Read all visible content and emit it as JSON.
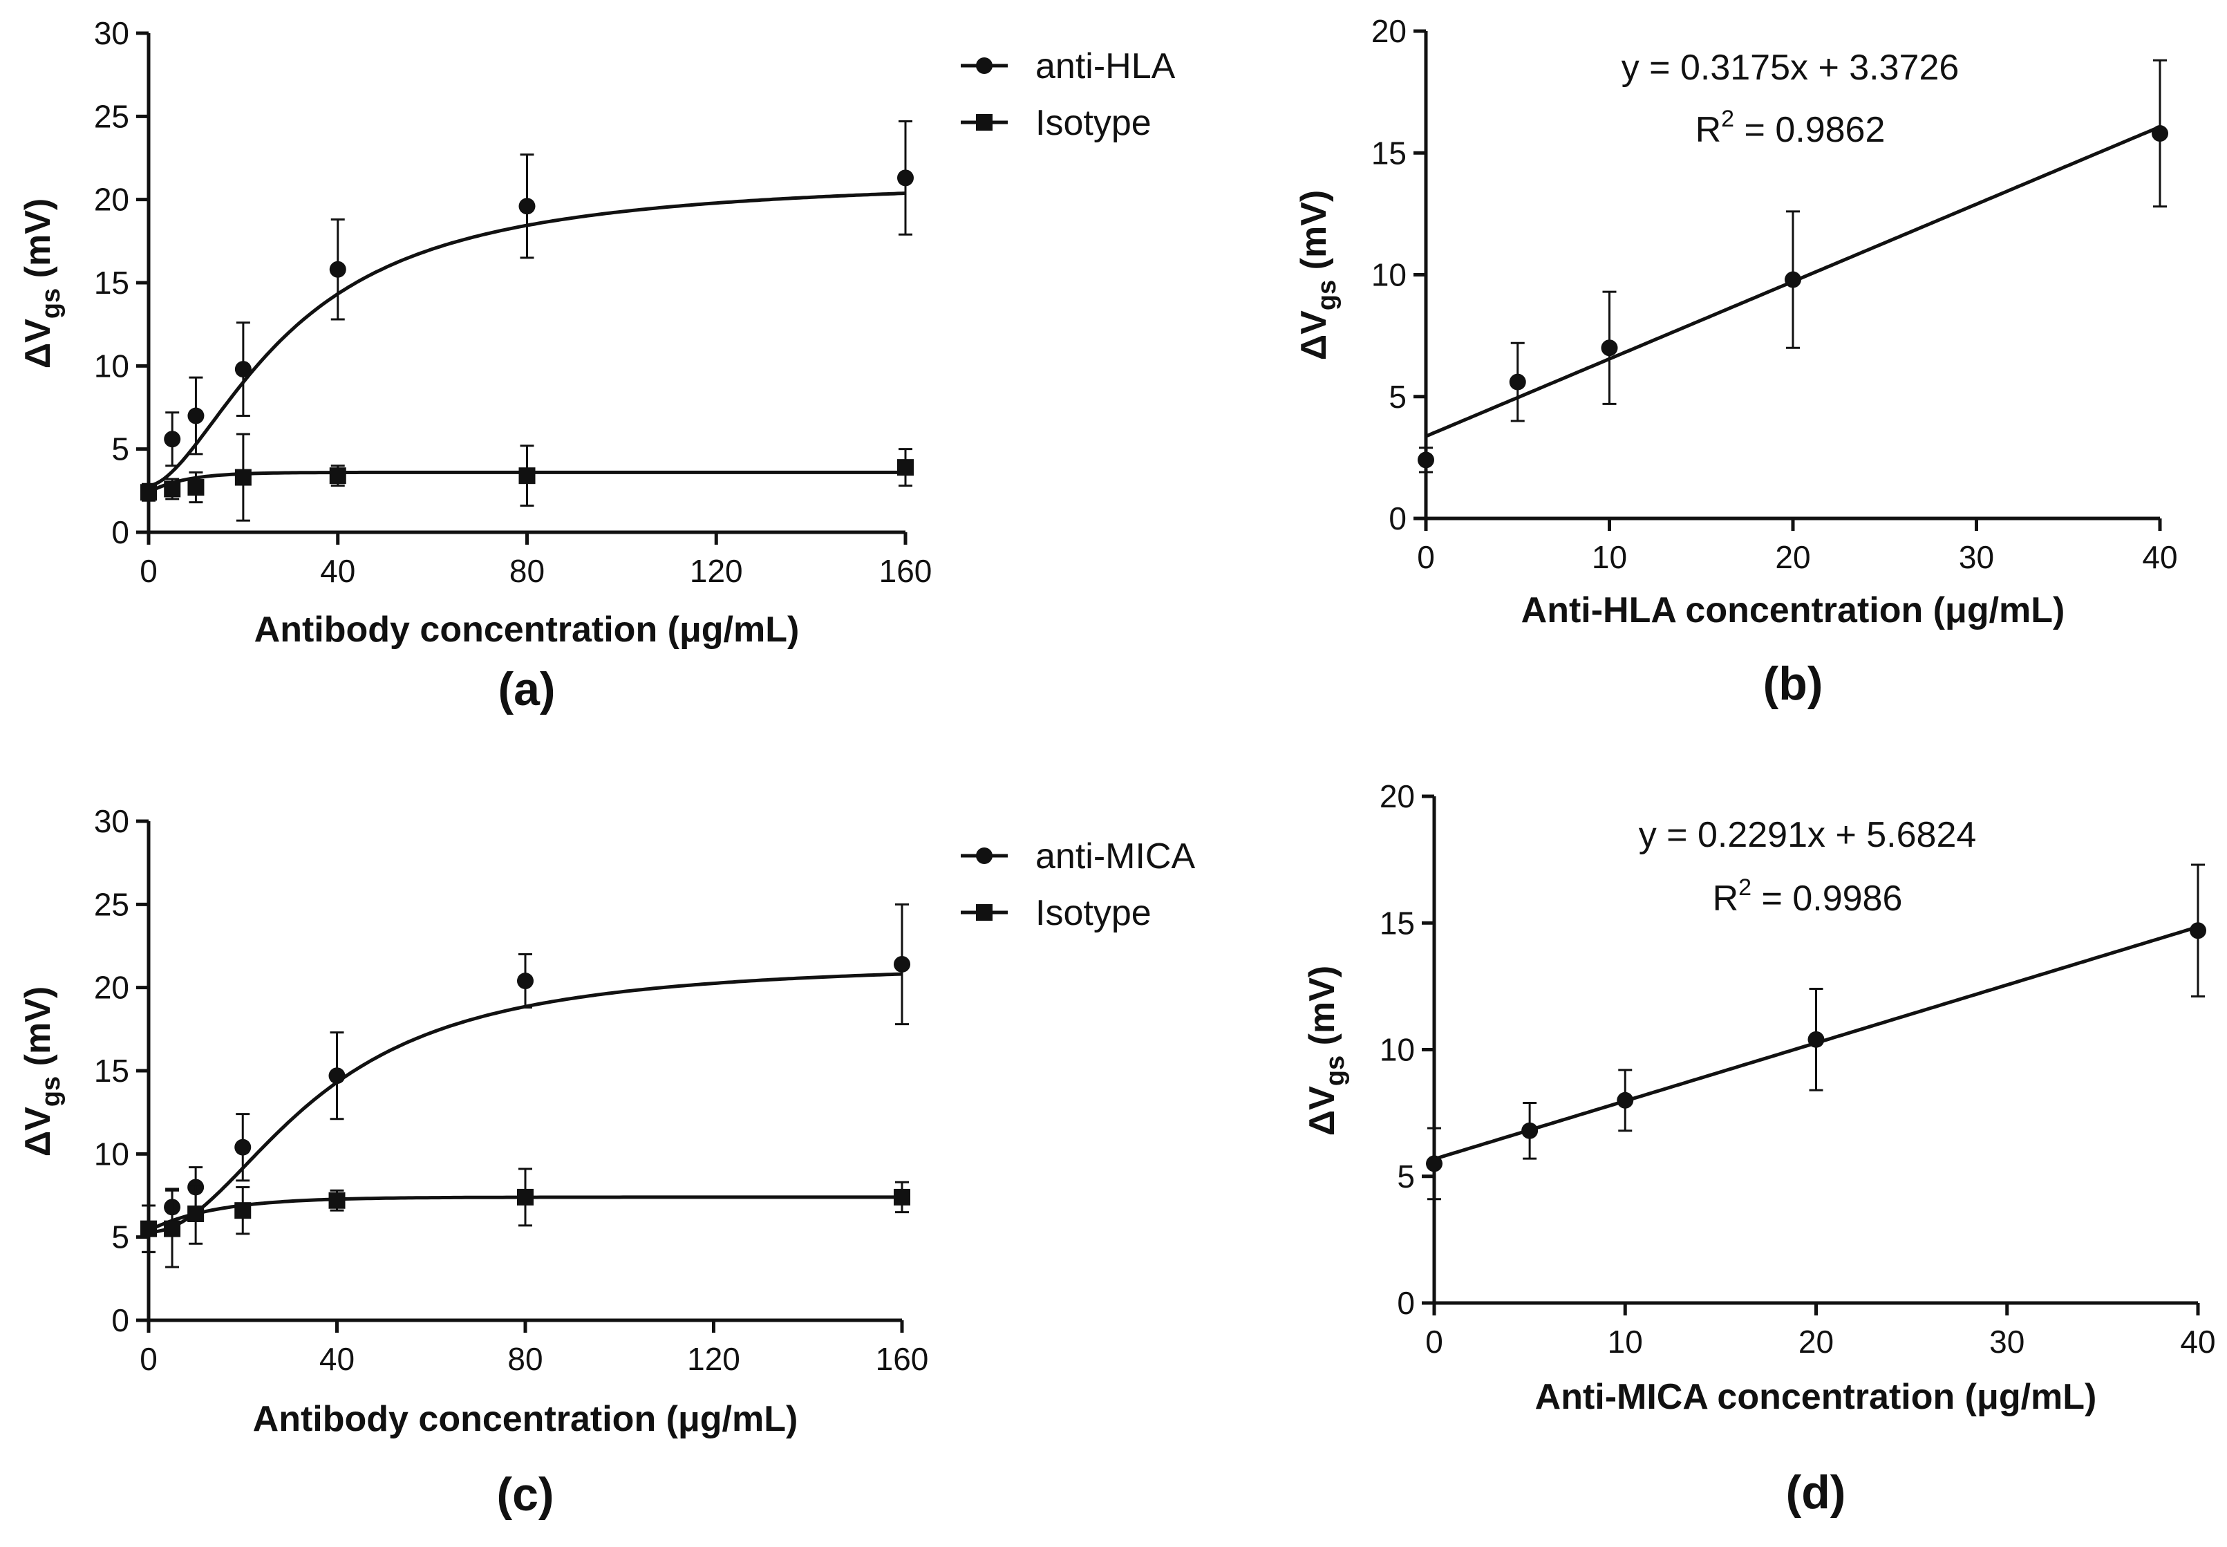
{
  "chart_data": [
    {
      "type": "scatter",
      "panel_label": "(a)",
      "xlabel": "Antibody concentration (μg/mL)",
      "ylabel": {
        "main": "ΔV",
        "sub": "gs",
        "unit": " (mV)"
      },
      "xlim": [
        0,
        160
      ],
      "ylim": [
        0,
        30
      ],
      "xticks": [
        0,
        40,
        80,
        120,
        160
      ],
      "yticks": [
        0,
        5,
        10,
        15,
        20,
        25,
        30
      ],
      "series": [
        {
          "name": "anti-HLA",
          "marker": "circle",
          "x": [
            0,
            5,
            10,
            20,
            40,
            80,
            160
          ],
          "y": [
            2.4,
            5.6,
            7.0,
            9.8,
            15.8,
            19.6,
            21.3
          ],
          "err": [
            0.5,
            1.6,
            2.3,
            2.8,
            3.0,
            3.1,
            3.4
          ],
          "fit": "sigmoid",
          "fit_params": {
            "bottom": 2.8,
            "top": 21.4,
            "ec50": 30,
            "hill": 1.7
          }
        },
        {
          "name": "Isotype",
          "marker": "square",
          "x": [
            0,
            5,
            10,
            20,
            40,
            80,
            160
          ],
          "y": [
            2.4,
            2.6,
            2.7,
            3.3,
            3.4,
            3.4,
            3.9
          ],
          "err": [
            0.4,
            0.6,
            0.9,
            2.6,
            0.6,
            1.8,
            1.1
          ],
          "fit": "saturation",
          "fit_params": {
            "bottom": 2.4,
            "top": 3.6,
            "k": 0.13
          }
        }
      ]
    },
    {
      "type": "scatter",
      "panel_label": "(b)",
      "xlabel": "Anti-HLA concentration (μg/mL)",
      "ylabel": {
        "main": "ΔV",
        "sub": "gs",
        "unit": " (mV)"
      },
      "xlim": [
        0,
        40
      ],
      "ylim": [
        0,
        20
      ],
      "xticks": [
        0,
        10,
        20,
        30,
        40
      ],
      "yticks": [
        0,
        5,
        10,
        15,
        20
      ],
      "equation": {
        "line": "y = 0.3175x + 3.3726",
        "r2_prefix": "R",
        "r2_sup": "2",
        "r2_value": " = 0.9862"
      },
      "series": [
        {
          "name": "anti-HLA",
          "marker": "circle",
          "x": [
            0,
            5,
            10,
            20,
            40
          ],
          "y": [
            2.4,
            5.6,
            7.0,
            9.8,
            15.8
          ],
          "err": [
            0.5,
            1.6,
            2.3,
            2.8,
            3.0
          ],
          "fit": "linear",
          "fit_params": {
            "slope": 0.3175,
            "intercept": 3.3726
          }
        }
      ]
    },
    {
      "type": "scatter",
      "panel_label": "(c)",
      "xlabel": "Antibody concentration (μg/mL)",
      "ylabel": {
        "main": "ΔV",
        "sub": "gs",
        "unit": " (mV)"
      },
      "xlim": [
        0,
        160
      ],
      "ylim": [
        0,
        30
      ],
      "xticks": [
        0,
        40,
        80,
        120,
        160
      ],
      "yticks": [
        0,
        5,
        10,
        15,
        20,
        25,
        30
      ],
      "series": [
        {
          "name": "anti-MICA",
          "marker": "circle",
          "x": [
            0,
            5,
            10,
            20,
            40,
            80,
            160
          ],
          "y": [
            5.5,
            6.8,
            8.0,
            10.4,
            14.7,
            20.4,
            21.4
          ],
          "err": [
            1.4,
            1.1,
            1.2,
            2.0,
            2.6,
            1.6,
            3.6
          ],
          "fit": "sigmoid",
          "fit_params": {
            "bottom": 5.3,
            "top": 21.6,
            "ec50": 36,
            "hill": 2.0
          }
        },
        {
          "name": "Isotype",
          "marker": "square",
          "x": [
            0,
            5,
            10,
            20,
            40,
            80,
            160
          ],
          "y": [
            5.5,
            5.5,
            6.4,
            6.6,
            7.2,
            7.4,
            7.4
          ],
          "err": [
            1.4,
            2.3,
            1.8,
            1.4,
            0.6,
            1.7,
            0.9
          ],
          "fit": "saturation",
          "fit_params": {
            "bottom": 5.4,
            "top": 7.4,
            "k": 0.07
          }
        }
      ]
    },
    {
      "type": "scatter",
      "panel_label": "(d)",
      "xlabel": "Anti-MICA concentration (μg/mL)",
      "ylabel": {
        "main": "ΔV",
        "sub": "gs",
        "unit": " (mV)"
      },
      "xlim": [
        0,
        40
      ],
      "ylim": [
        0,
        20
      ],
      "xticks": [
        0,
        10,
        20,
        30,
        40
      ],
      "yticks": [
        0,
        5,
        10,
        15,
        20
      ],
      "equation": {
        "line": "y = 0.2291x + 5.6824",
        "r2_prefix": "R",
        "r2_sup": "2",
        "r2_value": " = 0.9986"
      },
      "series": [
        {
          "name": "anti-MICA",
          "marker": "circle",
          "x": [
            0,
            5,
            10,
            20,
            40
          ],
          "y": [
            5.5,
            6.8,
            8.0,
            10.4,
            14.7
          ],
          "err": [
            1.4,
            1.1,
            1.2,
            2.0,
            2.6
          ],
          "fit": "linear",
          "fit_params": {
            "slope": 0.2291,
            "intercept": 5.6824
          }
        }
      ]
    }
  ]
}
